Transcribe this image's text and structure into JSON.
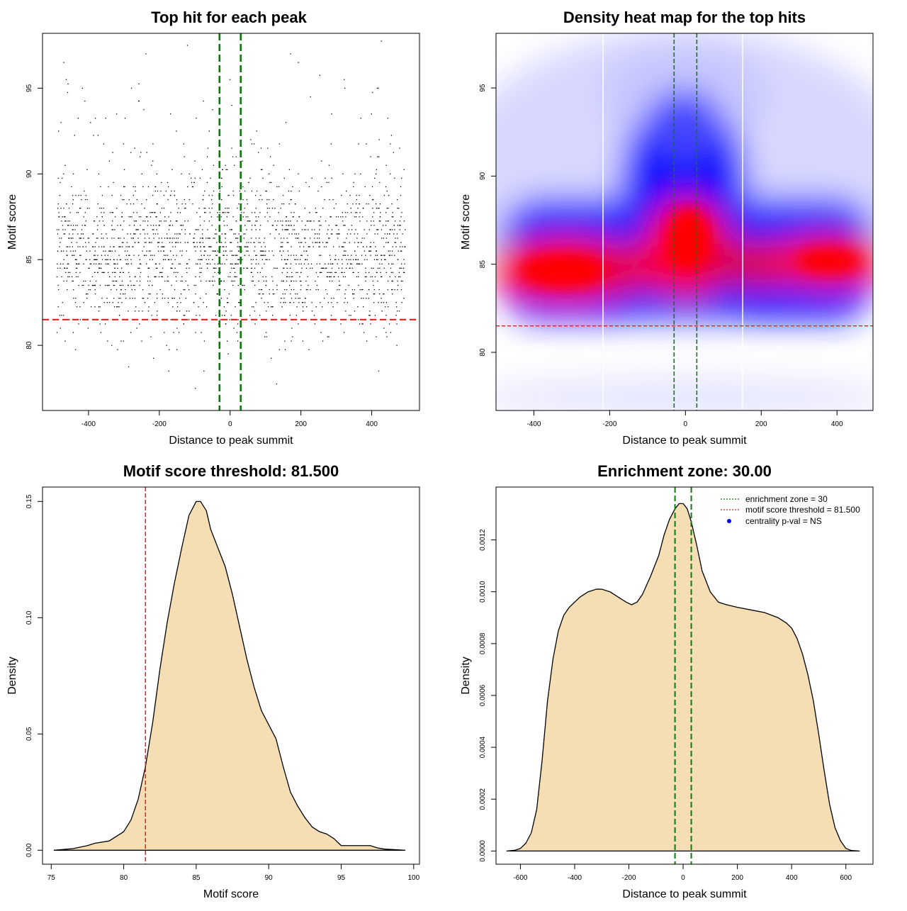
{
  "chart_data": [
    {
      "type": "scatter",
      "title": "Top hit for each peak",
      "xlabel": "Distance to peak summit",
      "ylabel": "Motif score",
      "xlim": [
        -530,
        535
      ],
      "ylim": [
        76.2,
        98.2
      ],
      "xticks": [
        -400,
        -200,
        0,
        200,
        400
      ],
      "yticks": [
        80,
        85,
        90,
        95
      ],
      "threshold_y": 81.5,
      "zone_x": [
        -30,
        30
      ],
      "colors": {
        "points": "#000000",
        "threshold": "#dd2222",
        "zone": "#117711"
      }
    },
    {
      "type": "heatmap",
      "title": "Density heat map for the top hits",
      "xlabel": "Distance to peak summit",
      "ylabel": "Motif score",
      "xlim": [
        -500,
        495
      ],
      "ylim": [
        76.7,
        98.1
      ],
      "xticks": [
        -400,
        -200,
        0,
        200,
        400
      ],
      "yticks": [
        80,
        85,
        90,
        95
      ],
      "threshold_y": 81.5,
      "zone_x": [
        -30,
        30
      ],
      "colors": {
        "low": "#ffffff",
        "mid": "#0000ff",
        "high": "#ff0000",
        "threshold": "#dd2222",
        "zone": "#117711"
      }
    },
    {
      "type": "area",
      "title": "Motif score threshold: 81.500",
      "xlabel": "Motif score",
      "ylabel": "Density",
      "xlim": [
        74.4,
        100.4
      ],
      "ylim": [
        -0.006,
        0.1562
      ],
      "xticks": [
        75,
        80,
        85,
        90,
        95,
        100
      ],
      "yticks": [
        0.0,
        0.05,
        0.1,
        0.15
      ],
      "ytick_labels": [
        "0.00",
        "0.05",
        "0.10",
        "0.15"
      ],
      "threshold_x": 81.5,
      "x": [
        75.2,
        76.5,
        77.5,
        78.0,
        79.0,
        80.0,
        80.5,
        81.0,
        81.5,
        82.0,
        82.5,
        83.0,
        83.5,
        84.0,
        84.5,
        85.0,
        85.3,
        85.7,
        86.0,
        86.5,
        87.0,
        87.5,
        88.0,
        88.5,
        89.0,
        89.5,
        90.0,
        90.5,
        91.0,
        91.5,
        92.0,
        92.5,
        93.0,
        93.5,
        94.0,
        94.5,
        95.0,
        95.5,
        96.0,
        96.5,
        97.0,
        97.5,
        98.0,
        99.4
      ],
      "y": [
        0.0,
        0.0007,
        0.002,
        0.003,
        0.004,
        0.008,
        0.013,
        0.022,
        0.036,
        0.055,
        0.078,
        0.098,
        0.115,
        0.13,
        0.144,
        0.15,
        0.15,
        0.146,
        0.138,
        0.13,
        0.122,
        0.11,
        0.096,
        0.082,
        0.07,
        0.06,
        0.054,
        0.048,
        0.036,
        0.025,
        0.019,
        0.014,
        0.01,
        0.008,
        0.007,
        0.005,
        0.002,
        0.002,
        0.002,
        0.002,
        0.002,
        0.001,
        0.0005,
        0.0
      ],
      "colors": {
        "fill": "#f5deb3",
        "line": "#000000",
        "threshold": "#dd2222"
      }
    },
    {
      "type": "area",
      "title": "Enrichment zone: 30.00",
      "xlabel": "Distance to peak summit",
      "ylabel": "Density",
      "xlim": [
        -690,
        700
      ],
      "ylim": [
        -5.1e-05,
        0.001404
      ],
      "xticks": [
        -600,
        -400,
        -200,
        0,
        200,
        400,
        600
      ],
      "yticks": [
        0.0,
        0.0002,
        0.0004,
        0.0006,
        0.0008,
        0.001,
        0.0012
      ],
      "ytick_labels": [
        "0.0000",
        "0.0002",
        "0.0004",
        "0.0006",
        "0.0008",
        "0.0010",
        "0.0012"
      ],
      "zone_x": [
        -30,
        30
      ],
      "x": [
        -650,
        -620,
        -600,
        -580,
        -560,
        -540,
        -520,
        -500,
        -480,
        -460,
        -440,
        -420,
        -400,
        -380,
        -350,
        -320,
        -300,
        -270,
        -240,
        -210,
        -190,
        -170,
        -150,
        -120,
        -90,
        -70,
        -50,
        -30,
        -15,
        0,
        15,
        30,
        50,
        70,
        100,
        130,
        160,
        200,
        250,
        300,
        350,
        380,
        400,
        420,
        440,
        460,
        480,
        500,
        520,
        540,
        560,
        580,
        600,
        620,
        650
      ],
      "y": [
        0.0,
        3e-06,
        1e-05,
        3e-05,
        7e-05,
        0.00016,
        0.00035,
        0.00058,
        0.00074,
        0.00085,
        0.00091,
        0.00094,
        0.00096,
        0.00098,
        0.001,
        0.00101,
        0.00101,
        0.001,
        0.00098,
        0.00096,
        0.00095,
        0.00096,
        0.00099,
        0.00106,
        0.00114,
        0.00122,
        0.00128,
        0.00132,
        0.00134,
        0.00134,
        0.00132,
        0.00127,
        0.00118,
        0.00108,
        0.001,
        0.00096,
        0.00095,
        0.00094,
        0.00093,
        0.00092,
        0.0009,
        0.00088,
        0.00086,
        0.00082,
        0.00076,
        0.00068,
        0.00058,
        0.00045,
        0.00031,
        0.00018,
        9e-05,
        4e-05,
        1e-05,
        2e-06,
        0.0
      ],
      "legend": {
        "position": "top-right",
        "entries": [
          {
            "label": "enrichment zone = 30",
            "color": "#117711",
            "style": "dotted-line"
          },
          {
            "label": "motif score threshold = 81.500",
            "color": "#dd2222",
            "style": "dotted-line"
          },
          {
            "label": "centrality p-val = NS",
            "color": "#0000ff",
            "style": "point"
          }
        ]
      },
      "colors": {
        "fill": "#f5deb3",
        "line": "#000000",
        "zone": "#117711"
      }
    }
  ]
}
